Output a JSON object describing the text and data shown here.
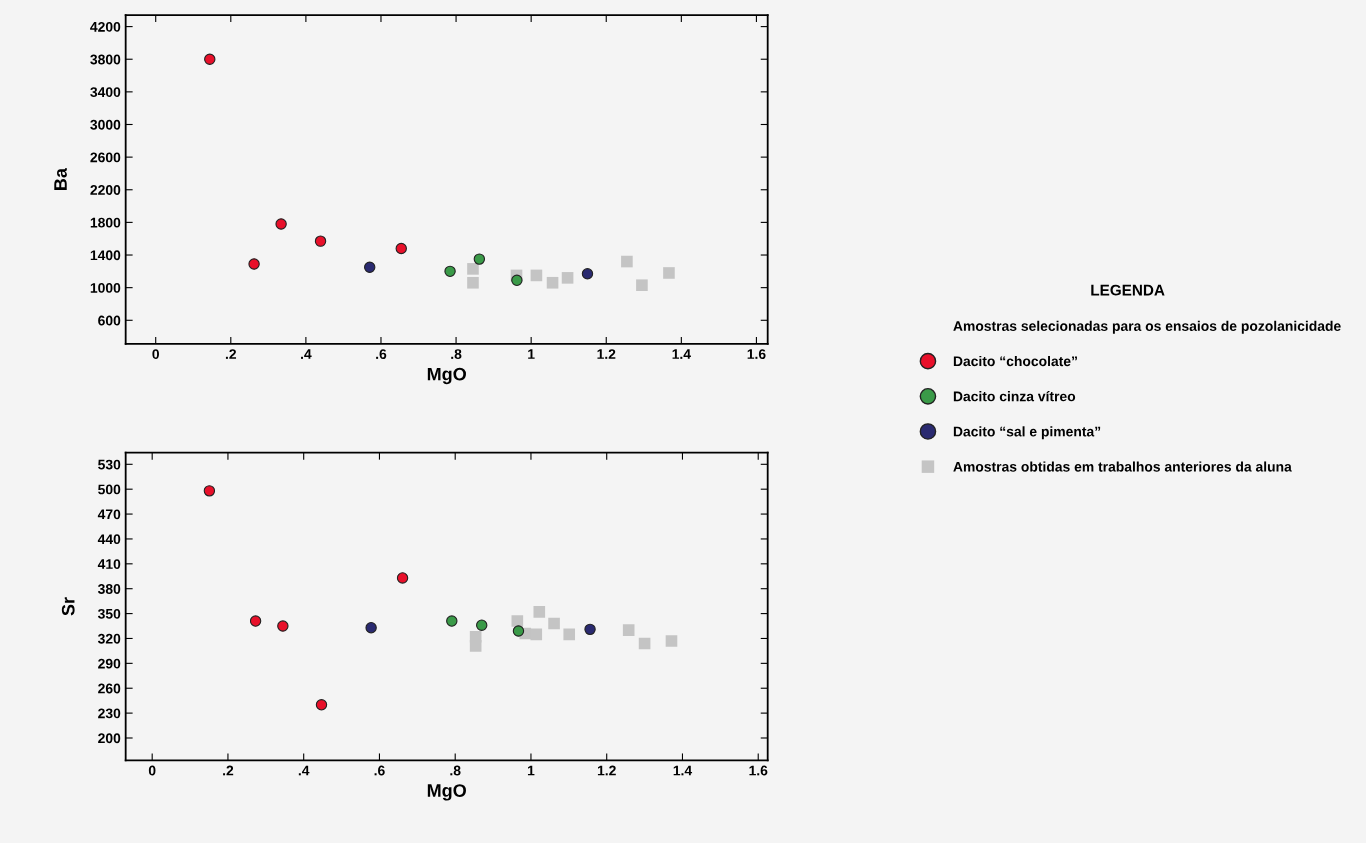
{
  "chart_data": [
    {
      "type": "scatter",
      "xlabel": "MgO",
      "ylabel": "Ba",
      "legend": "right",
      "legend_title": "LEGENDA",
      "grid": false,
      "annotations": [
        "Amostras selecionadas para os ensaios de pozolanicidade"
      ],
      "xlim": [
        -0.08,
        1.63
      ],
      "ylim": [
        310,
        4340
      ],
      "xticks": [
        {
          "value": 0,
          "label": "0"
        },
        {
          "value": 0.2,
          "label": ".2"
        },
        {
          "value": 0.4,
          "label": ".4"
        },
        {
          "value": 0.6,
          "label": ".6"
        },
        {
          "value": 0.8,
          "label": ".8"
        },
        {
          "value": 1,
          "label": "1"
        },
        {
          "value": 1.2,
          "label": "1.2"
        },
        {
          "value": 1.4,
          "label": "1.4"
        },
        {
          "value": 1.6,
          "label": "1.6"
        }
      ],
      "yticks": [
        600,
        1000,
        1400,
        1800,
        2200,
        2600,
        3000,
        3400,
        3800,
        4200
      ],
      "series": [
        {
          "name": "Dacito “chocolate”",
          "color": "#e8102a",
          "marker": "circle",
          "x": [
            0.144,
            0.262,
            0.334,
            0.439,
            0.654
          ],
          "values": [
            3800,
            1290,
            1780,
            1570,
            1480
          ]
        },
        {
          "name": "Dacito cinza vítreo",
          "color": "#3a9a48",
          "marker": "circle",
          "x": [
            0.784,
            0.862,
            0.962
          ],
          "values": [
            1200,
            1350,
            1090
          ]
        },
        {
          "name": "Dacito “sal e pimenta”",
          "color": "#2a2a70",
          "marker": "circle",
          "x": [
            0.57,
            1.15
          ],
          "values": [
            1250,
            1170
          ]
        },
        {
          "name": "Amostras obtidas em trabalhos anteriores da aluna",
          "color": "#c4c4c4",
          "marker": "square",
          "x": [
            0.845,
            0.845,
            0.961,
            1.014,
            1.057,
            1.097,
            1.255,
            1.295,
            1.367
          ],
          "values": [
            1230,
            1060,
            1150,
            1150,
            1060,
            1120,
            1320,
            1030,
            1180
          ]
        }
      ]
    },
    {
      "type": "scatter",
      "xlabel": "MgO",
      "ylabel": "Sr",
      "grid": false,
      "xlim": [
        -0.07,
        1.625
      ],
      "ylim": [
        173,
        544
      ],
      "xticks": [
        {
          "value": 0,
          "label": "0"
        },
        {
          "value": 0.2,
          "label": ".2"
        },
        {
          "value": 0.4,
          "label": ".4"
        },
        {
          "value": 0.6,
          "label": ".6"
        },
        {
          "value": 0.8,
          "label": ".8"
        },
        {
          "value": 1,
          "label": "1"
        },
        {
          "value": 1.2,
          "label": "1.2"
        },
        {
          "value": 1.4,
          "label": "1.4"
        },
        {
          "value": 1.6,
          "label": "1.6"
        }
      ],
      "yticks": [
        200,
        230,
        260,
        290,
        320,
        350,
        380,
        410,
        440,
        470,
        500,
        530
      ],
      "series": [
        {
          "color": "#e8102a",
          "marker": "circle",
          "x": [
            0.151,
            0.273,
            0.345,
            0.447,
            0.661
          ],
          "values": [
            498,
            341,
            335,
            240,
            393
          ]
        },
        {
          "color": "#3a9a48",
          "marker": "circle",
          "x": [
            0.791,
            0.87,
            0.967
          ],
          "values": [
            341,
            336,
            329
          ]
        },
        {
          "color": "#2a2a70",
          "marker": "circle",
          "x": [
            0.578,
            1.156
          ],
          "values": [
            333,
            331
          ]
        },
        {
          "color": "#c4c4c4",
          "marker": "square",
          "x": [
            0.854,
            0.854,
            0.964,
            0.985,
            1.014,
            1.022,
            1.061,
            1.101,
            1.258,
            1.3,
            1.371
          ],
          "values": [
            322,
            311,
            341,
            326,
            325,
            352,
            338,
            325,
            330,
            314,
            317
          ]
        }
      ]
    }
  ]
}
